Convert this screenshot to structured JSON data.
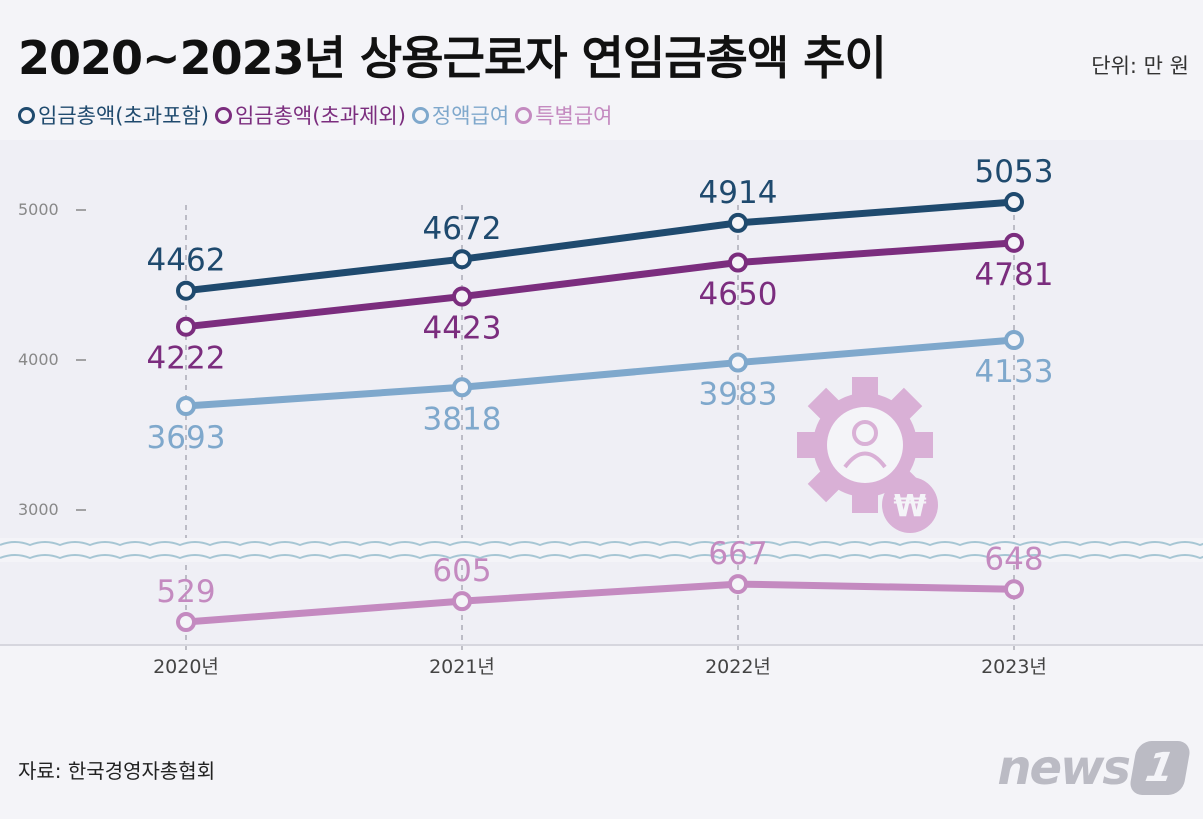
{
  "title": "2020~2023년 상용근로자 연임금총액 추이",
  "unit": "단위: 만 원",
  "source": "자료: 한국경영자총협회",
  "brand": {
    "text": "news",
    "badge": "1"
  },
  "legend": [
    {
      "label": "임금총액(초과포함)",
      "color": "#1f4a6e"
    },
    {
      "label": "임금총액(초과제외)",
      "color": "#7b2d7e"
    },
    {
      "label": "정액급여",
      "color": "#7fa8cc"
    },
    {
      "label": "특별급여",
      "color": "#c48ac0"
    }
  ],
  "decoration_icon": "gear-person-won-icon",
  "chart_data": {
    "type": "line",
    "x": [
      "2020년",
      "2021년",
      "2022년",
      "2023년"
    ],
    "yticks": [
      "5000",
      "4000",
      "3000"
    ],
    "ylim": [
      3000,
      5000
    ],
    "axis_break": true,
    "grid": false,
    "series": [
      {
        "name": "임금총액(초과포함)",
        "color": "#1f4a6e",
        "labelPos": "above",
        "values": [
          4462,
          4672,
          4914,
          5053
        ]
      },
      {
        "name": "임금총액(초과제외)",
        "color": "#7b2d7e",
        "labelPos": "below",
        "values": [
          4222,
          4423,
          4650,
          4781
        ]
      },
      {
        "name": "정액급여",
        "color": "#7fa8cc",
        "labelPos": "below",
        "values": [
          3693,
          3818,
          3983,
          4133
        ]
      },
      {
        "name": "특별급여",
        "color": "#c48ac0",
        "labelPos": "above",
        "belowBreak": true,
        "values": [
          529,
          605,
          667,
          648
        ]
      }
    ]
  }
}
